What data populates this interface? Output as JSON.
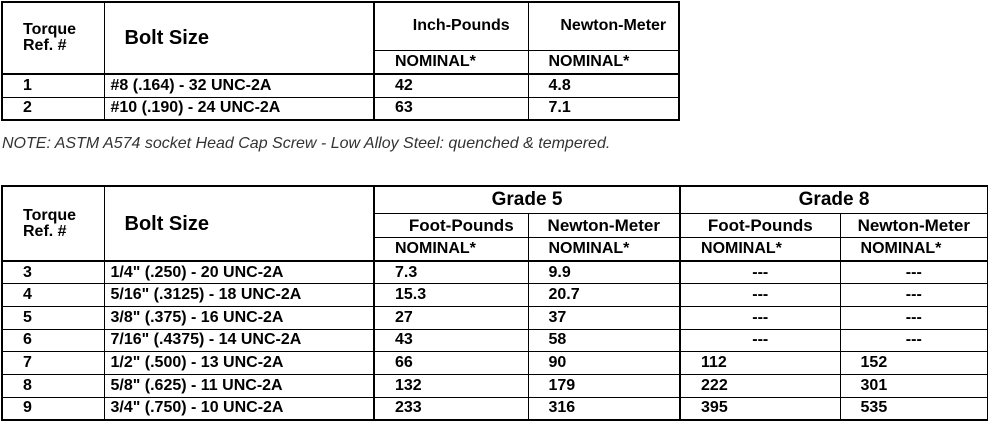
{
  "table1": {
    "header": {
      "ref": "Torque Ref. #",
      "bolt": "Bolt Size",
      "columns": [
        "Inch-Pounds",
        "Newton-Meter"
      ],
      "nominal": [
        "NOMINAL*",
        "NOMINAL*"
      ]
    },
    "rows": [
      [
        "1",
        "#8 (.164) - 32 UNC-2A",
        "42",
        "4.8"
      ],
      [
        "2",
        "#10 (.190) - 24 UNC-2A",
        "63",
        "7.1"
      ]
    ]
  },
  "note": "NOTE: ASTM A574 socket Head Cap Screw - Low Alloy Steel: quenched & tempered.",
  "table2": {
    "header": {
      "ref": "Torque Ref. #",
      "bolt": "Bolt Size",
      "grades": [
        "Grade 5",
        "Grade 8"
      ],
      "columns": [
        "Foot-Pounds",
        "Newton-Meter",
        "Foot-Pounds",
        "Newton-Meter"
      ],
      "nominal": [
        "NOMINAL*",
        "NOMINAL*",
        "NOMINAL*",
        "NOMINAL*"
      ]
    },
    "rows": [
      [
        "3",
        "1/4\" (.250) - 20 UNC-2A",
        "7.3",
        "9.9",
        "---",
        "---"
      ],
      [
        "4",
        "5/16\" (.3125) - 18 UNC-2A",
        "15.3",
        "20.7",
        "---",
        "---"
      ],
      [
        "5",
        "3/8\" (.375) - 16 UNC-2A",
        "27",
        "37",
        "---",
        "---"
      ],
      [
        "6",
        "7/16\" (.4375) - 14 UNC-2A",
        "43",
        "58",
        "---",
        "---"
      ],
      [
        "7",
        "1/2\" (.500) - 13 UNC-2A",
        "66",
        "90",
        "112",
        "152"
      ],
      [
        "8",
        "5/8\" (.625) - 11 UNC-2A",
        "132",
        "179",
        "222",
        "301"
      ],
      [
        "9",
        "3/4\" (.750) - 10 UNC-2A",
        "233",
        "316",
        "395",
        "535"
      ]
    ]
  }
}
